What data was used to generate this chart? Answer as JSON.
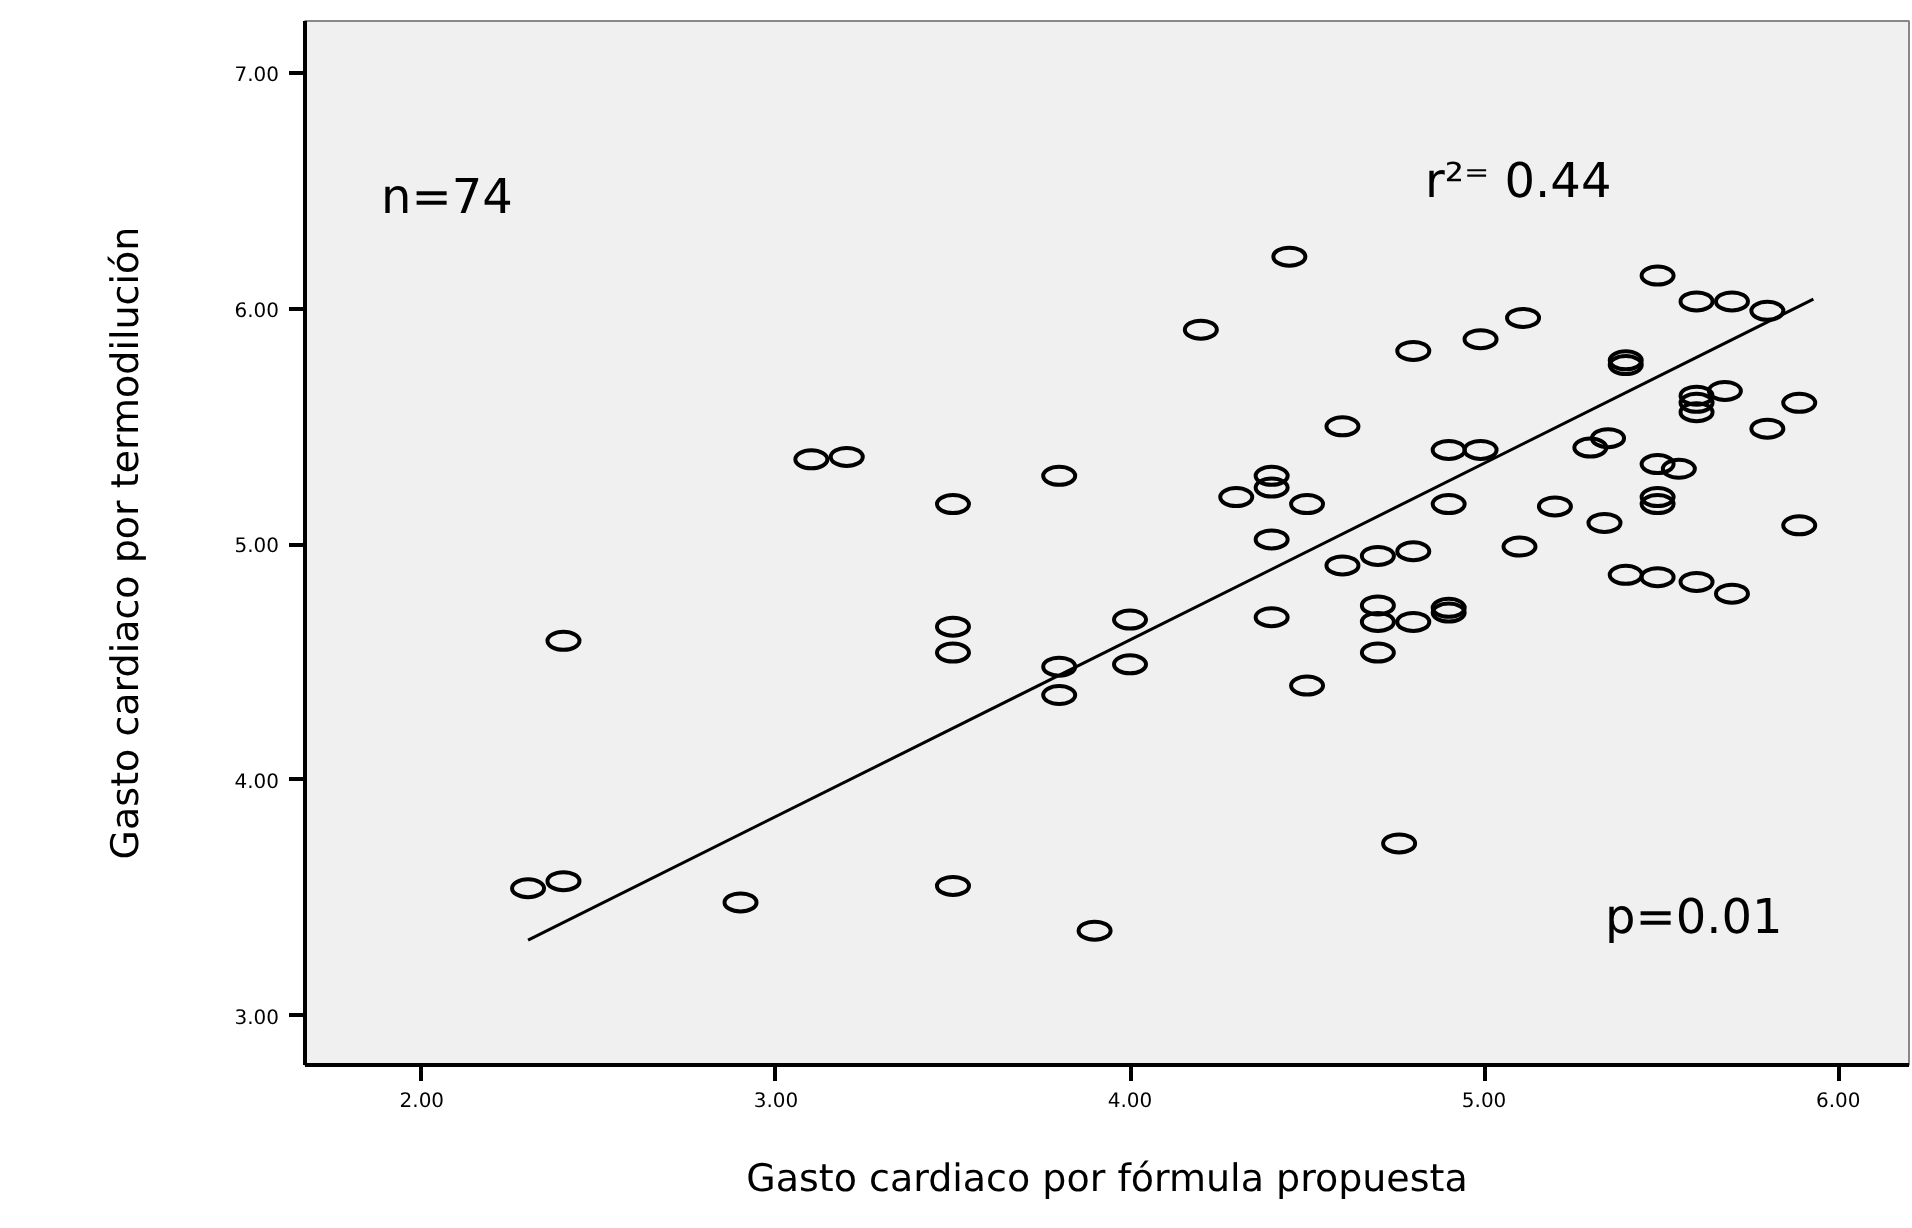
{
  "chart_data": {
    "type": "scatter",
    "xlabel": "Gasto cardiaco por fórmula propuesta",
    "ylabel": "Gasto cardiaco por termodilución",
    "annotations": [
      "n=74",
      "r²⁼ 0.44",
      "p=0.01"
    ],
    "grid": false,
    "xlim": [
      1.67,
      6.2
    ],
    "ylim": [
      2.79,
      7.22
    ],
    "xticks": [
      {
        "value": 2,
        "label": "2.00"
      },
      {
        "value": 3,
        "label": "3.00"
      },
      {
        "value": 4,
        "label": "4.00"
      },
      {
        "value": 5,
        "label": "5.00"
      },
      {
        "value": 6,
        "label": "6.00"
      }
    ],
    "yticks": [
      {
        "value": 3,
        "label": "3.00"
      },
      {
        "value": 4,
        "label": "4.00"
      },
      {
        "value": 5,
        "label": "5.00"
      },
      {
        "value": 6,
        "label": "6.00"
      },
      {
        "value": 7,
        "label": "7.00"
      }
    ],
    "series": [
      {
        "color": "#000000",
        "marker": "circle",
        "x": [
          2.3,
          2.4,
          2.4,
          2.9,
          3.5,
          3.5,
          3.5,
          3.1,
          3.2,
          3.5,
          3.8,
          4.2,
          4.45,
          4.6,
          4.3,
          4.4,
          4.4,
          4.5,
          4.4,
          4.6,
          4.7,
          4.8,
          4.8,
          4.9,
          4.99,
          4.9,
          4.99,
          5.11,
          5.1,
          5.2,
          5.3,
          5.35,
          5.34,
          5.4,
          5.4,
          5.49,
          5.6,
          5.7,
          5.8,
          5.6,
          5.6,
          5.6,
          5.68,
          5.49,
          5.55,
          5.49,
          5.49,
          5.89,
          5.8,
          5.89,
          5.4,
          5.49,
          5.6,
          5.7,
          4.4,
          4.7,
          4.7,
          4.8,
          4.9,
          4.9,
          4.7,
          4.5,
          4.0,
          4.0,
          3.8,
          3.8,
          4.76,
          3.9
        ],
        "values": [
          3.54,
          3.57,
          4.59,
          3.48,
          4.65,
          4.54,
          3.55,
          5.36,
          5.37,
          5.17,
          5.29,
          5.91,
          6.22,
          5.5,
          5.2,
          5.29,
          5.24,
          5.17,
          5.02,
          4.91,
          4.95,
          4.97,
          5.82,
          5.4,
          5.4,
          5.17,
          5.87,
          5.96,
          4.99,
          5.16,
          5.41,
          5.45,
          5.09,
          5.78,
          5.76,
          6.14,
          6.03,
          6.03,
          5.99,
          5.63,
          5.6,
          5.56,
          5.65,
          5.34,
          5.32,
          5.2,
          5.17,
          5.6,
          5.49,
          5.08,
          4.87,
          4.86,
          4.84,
          4.79,
          4.69,
          4.74,
          4.67,
          4.67,
          4.73,
          4.71,
          4.54,
          4.4,
          4.68,
          4.49,
          4.48,
          4.36,
          3.73,
          3.36
        ]
      },
      {
        "type": "line",
        "color": "#000000",
        "x": [
          2.3,
          5.93
        ],
        "values": [
          3.32,
          6.04
        ]
      }
    ]
  }
}
